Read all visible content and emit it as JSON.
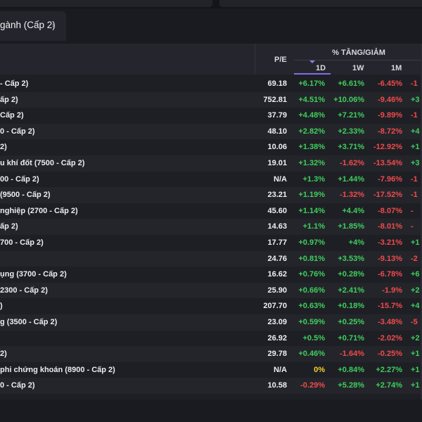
{
  "tab": {
    "label": "gành (Cấp 2)",
    "sort_glyph": "⬍"
  },
  "header": {
    "pe": "P/E",
    "group": "% TĂNG/GIẢM",
    "d1": "1D",
    "w1": "1W",
    "m1": "1M"
  },
  "rows": [
    {
      "name": "- Cấp 2)",
      "pe": "69.18",
      "d1": "+6.17%",
      "w1": "+6.61%",
      "m1": "-6.45%",
      "x1": "-1"
    },
    {
      "name": "ấp 2)",
      "pe": "752.81",
      "d1": "+4.51%",
      "w1": "+10.06%",
      "m1": "-9.46%",
      "x1": "+3"
    },
    {
      "name": "Cấp 2)",
      "pe": "37.79",
      "d1": "+4.48%",
      "w1": "+7.21%",
      "m1": "-9.89%",
      "x1": "-1"
    },
    {
      "name": "0 - Cấp 2)",
      "pe": "48.10",
      "d1": "+2.82%",
      "w1": "+2.33%",
      "m1": "-8.72%",
      "x1": "+4"
    },
    {
      "name": "2)",
      "pe": "10.06",
      "d1": "+1.38%",
      "w1": "+3.71%",
      "m1": "-12.92%",
      "x1": "+1"
    },
    {
      "name": "u khí đốt (7500 - Cấp 2)",
      "pe": "19.01",
      "d1": "+1.32%",
      "w1": "-1.62%",
      "m1": "-13.54%",
      "x1": "+3"
    },
    {
      "name": "00 - Cấp 2)",
      "pe": "N/A",
      "d1": "+1.3%",
      "w1": "+1.44%",
      "m1": "-7.96%",
      "x1": "-1"
    },
    {
      "name": "(9500 - Cấp 2)",
      "pe": "23.21",
      "d1": "+1.19%",
      "w1": "-1.32%",
      "m1": "-17.52%",
      "x1": "-1"
    },
    {
      "name": "nghiệp (2700 - Cấp 2)",
      "pe": "45.60",
      "d1": "+1.14%",
      "w1": "+4.4%",
      "m1": "-8.07%",
      "x1": "-"
    },
    {
      "name": "ấp 2)",
      "pe": "14.63",
      "d1": "+1.1%",
      "w1": "+1.85%",
      "m1": "-8.01%",
      "x1": "-"
    },
    {
      "name": "700 - Cấp 2)",
      "pe": "17.77",
      "d1": "+0.97%",
      "w1": "+4%",
      "m1": "-3.21%",
      "x1": "+1"
    },
    {
      "name": "",
      "pe": "24.76",
      "d1": "+0.81%",
      "w1": "+3.53%",
      "m1": "-9.13%",
      "x1": "-2"
    },
    {
      "name": "ụng (3700 - Cấp 2)",
      "pe": "16.62",
      "d1": "+0.76%",
      "w1": "+0.28%",
      "m1": "-6.78%",
      "x1": "+6"
    },
    {
      "name": "2300 - Cấp 2)",
      "pe": "25.90",
      "d1": "+0.66%",
      "w1": "+2.41%",
      "m1": "-1.9%",
      "x1": "+2"
    },
    {
      "name": ")",
      "pe": "207.70",
      "d1": "+0.63%",
      "w1": "+0.18%",
      "m1": "-15.7%",
      "x1": "+4"
    },
    {
      "name": "g (3500 - Cấp 2)",
      "pe": "23.09",
      "d1": "+0.59%",
      "w1": "+0.25%",
      "m1": "-3.48%",
      "x1": "-5"
    },
    {
      "name": "",
      "pe": "26.92",
      "d1": "+0.5%",
      "w1": "+0.71%",
      "m1": "-2.02%",
      "x1": "+2"
    },
    {
      "name": " 2)",
      "pe": "29.78",
      "d1": "+0.46%",
      "w1": "-1.64%",
      "m1": "-0.25%",
      "x1": "+1"
    },
    {
      "name": "phi chứng khoán (8900 - Cấp 2)",
      "pe": "N/A",
      "d1": "0%",
      "w1": "+0.84%",
      "m1": "+2.27%",
      "x1": "+1"
    },
    {
      "name": "0 - Cấp 2)",
      "pe": "10.58",
      "d1": "-0.29%",
      "w1": "+5.28%",
      "m1": "+2.74%",
      "x1": "+1"
    }
  ]
}
